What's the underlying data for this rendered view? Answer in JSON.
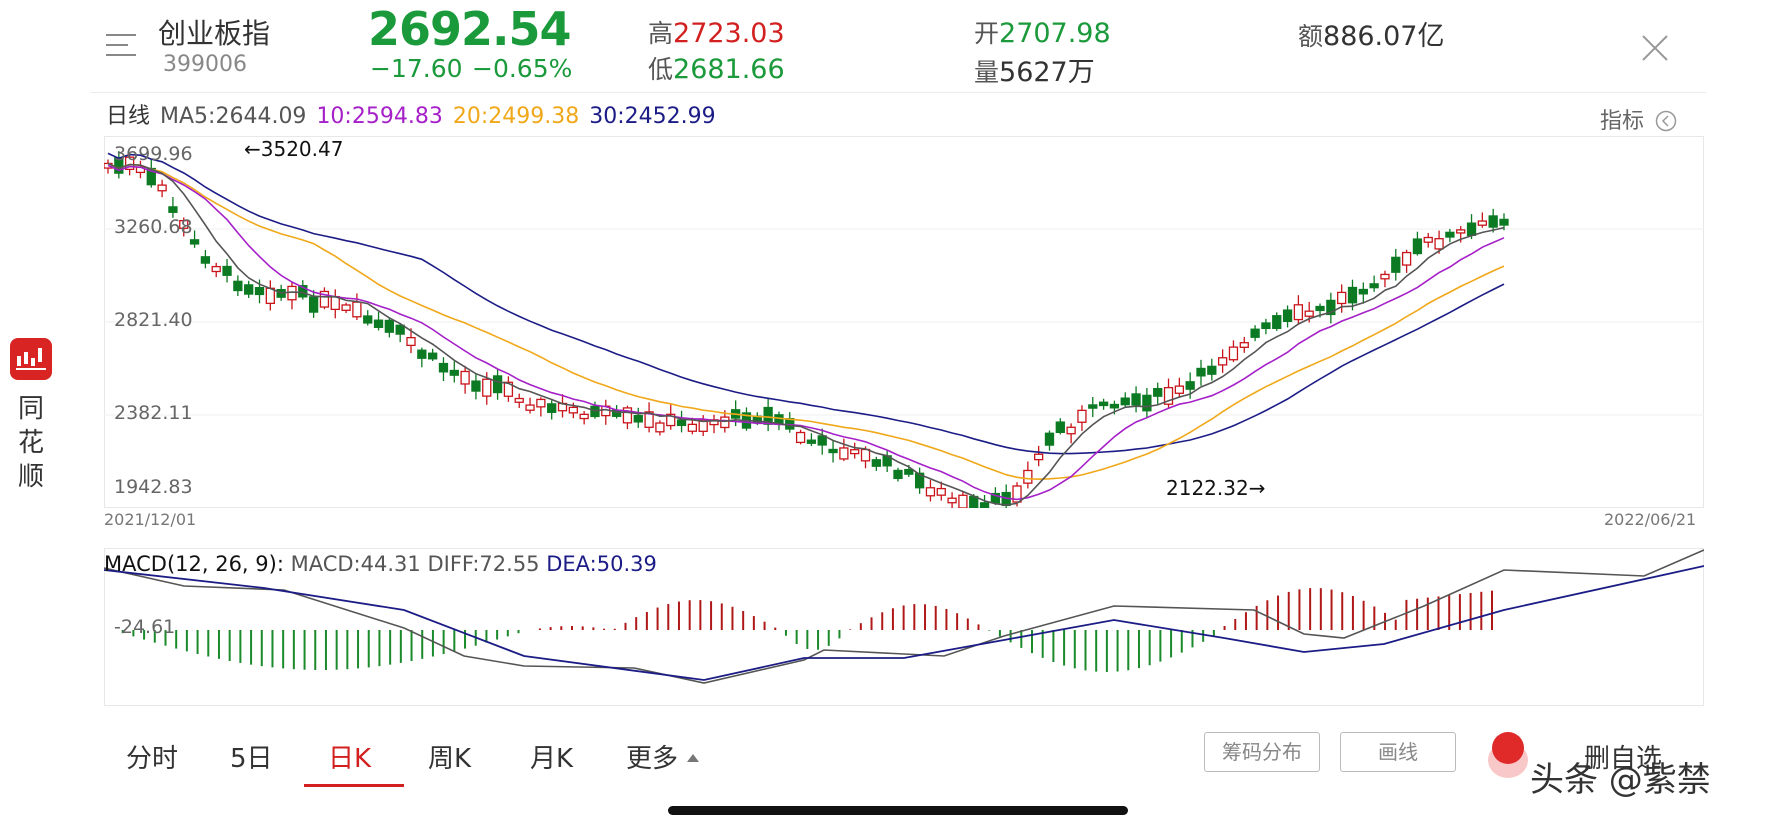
{
  "header": {
    "name": "创业板指",
    "code": "399006",
    "price": "2692.54",
    "change": "−17.60",
    "change_pct": "−0.65%",
    "high_label": "高",
    "high": "2723.03",
    "low_label": "低",
    "low": "2681.66",
    "open_label": "开",
    "open": "2707.98",
    "volume_label": "量",
    "volume": "5627万",
    "amount_label": "额",
    "amount": "886.07亿"
  },
  "ma_row": {
    "period": "日线",
    "ma5": "MA5:2644.09",
    "ma10": "10:2594.83",
    "ma20": "20:2499.38",
    "ma30": "30:2452.99",
    "indicator_btn": "指标"
  },
  "colors": {
    "up": "#d21f1f",
    "down": "#1a9a3a",
    "ma5": "#555555",
    "ma10": "#a520c8",
    "ma20": "#f0a81a",
    "ma30": "#1c1c86"
  },
  "kline": {
    "y_ticks": [
      "3699.96",
      "3260.68",
      "2821.40",
      "2382.11",
      "1942.83"
    ],
    "max_annotation": "←3520.47",
    "min_annotation": "2122.32→",
    "start_date": "2021/12/01",
    "end_date": "2022/06/21"
  },
  "macd": {
    "label": "MACD(12, 26, 9):",
    "macd": "MACD:44.31",
    "diff": "DIFF:72.55",
    "dea": "DEA:50.39",
    "y_tick": "-24.61"
  },
  "side": {
    "app_name": "同花顺",
    "icon": "chart-logo-icon"
  },
  "tabs": [
    {
      "label": "分时"
    },
    {
      "label": "5日"
    },
    {
      "label": "日K"
    },
    {
      "label": "周K"
    },
    {
      "label": "月K"
    },
    {
      "label": "更多"
    }
  ],
  "active_tab": "日K",
  "buttons": {
    "chips": "筹码分布",
    "draw": "画线",
    "remove_fav": "删自选"
  },
  "watermark": "头条 @紫禁",
  "icons": {
    "menu": "menu-icon",
    "close": "close-icon",
    "indicator": "chevron-left-circle-icon",
    "more_arrow": "caret-up-icon"
  }
}
